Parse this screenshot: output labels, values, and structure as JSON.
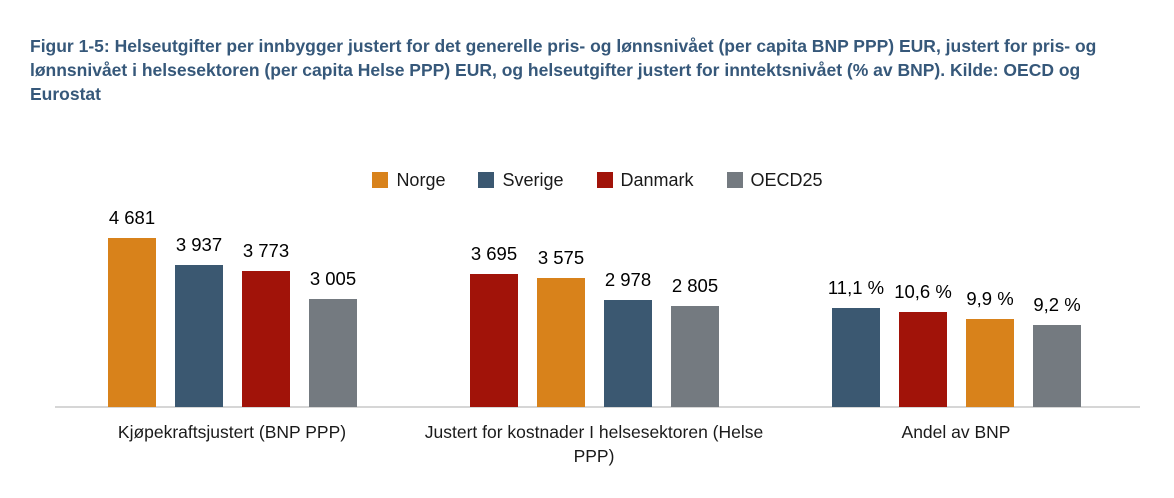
{
  "figure": {
    "title": "Figur 1-5: Helseutgifter per innbygger justert for det generelle pris- og lønnsnivået (per capita BNP PPP) EUR, justert for pris- og lønnsnivået i helsesektoren (per capita Helse PPP) EUR, og helseutgifter justert for inntektsnivået (% av BNP). Kilde: OECD og Eurostat"
  },
  "colors": {
    "title_text": "#36587a",
    "axis_line": "#d6d6d6",
    "series": {
      "Norge": "#d8821b",
      "Sverige": "#3b5871",
      "Danmark": "#a11309",
      "OECD25": "#747a80"
    }
  },
  "chart_data": {
    "type": "bar",
    "title": "Figur 1-5: Helseutgifter per innbygger justert for det generelle pris- og lønnsnivået (per capita BNP PPP) EUR, justert for pris- og lønnsnivået i helsesektoren (per capita Helse PPP) EUR, og helseutgifter justert for inntektsnivået (% av BNP). Kilde: OECD og Eurostat",
    "legend_position": "top",
    "legend": [
      {
        "label": "Norge",
        "color": "#d8821b"
      },
      {
        "label": "Sverige",
        "color": "#3b5871"
      },
      {
        "label": "Danmark",
        "color": "#a11309"
      },
      {
        "label": "OECD25",
        "color": "#747a80"
      }
    ],
    "value_axis_visible": false,
    "gridlines": false,
    "data_labels": true,
    "groups": [
      {
        "category": "Kjøpekraftsjustert (BNP PPP)",
        "unit": "EUR",
        "bars": [
          {
            "series": "Norge",
            "value": 4681,
            "label": "4 681"
          },
          {
            "series": "Sverige",
            "value": 3937,
            "label": "3 937"
          },
          {
            "series": "Danmark",
            "value": 3773,
            "label": "3 773"
          },
          {
            "series": "OECD25",
            "value": 3005,
            "label": "3 005"
          }
        ]
      },
      {
        "category": "Justert for kostnader I helsesektoren (Helse PPP)",
        "unit": "EUR",
        "bars": [
          {
            "series": "Danmark",
            "value": 3695,
            "label": "3 695"
          },
          {
            "series": "Norge",
            "value": 3575,
            "label": "3 575"
          },
          {
            "series": "Sverige",
            "value": 2978,
            "label": "2 978"
          },
          {
            "series": "OECD25",
            "value": 2805,
            "label": "2 805"
          }
        ]
      },
      {
        "category": "Andel av BNP",
        "unit": "%",
        "bars": [
          {
            "series": "Sverige",
            "value": 11.1,
            "label": "11,1 %"
          },
          {
            "series": "Danmark",
            "value": 10.6,
            "label": "10,6 %"
          },
          {
            "series": "Norge",
            "value": 9.9,
            "label": "9,9 %"
          },
          {
            "series": "OECD25",
            "value": 9.2,
            "label": "9,2 %"
          }
        ]
      }
    ]
  }
}
